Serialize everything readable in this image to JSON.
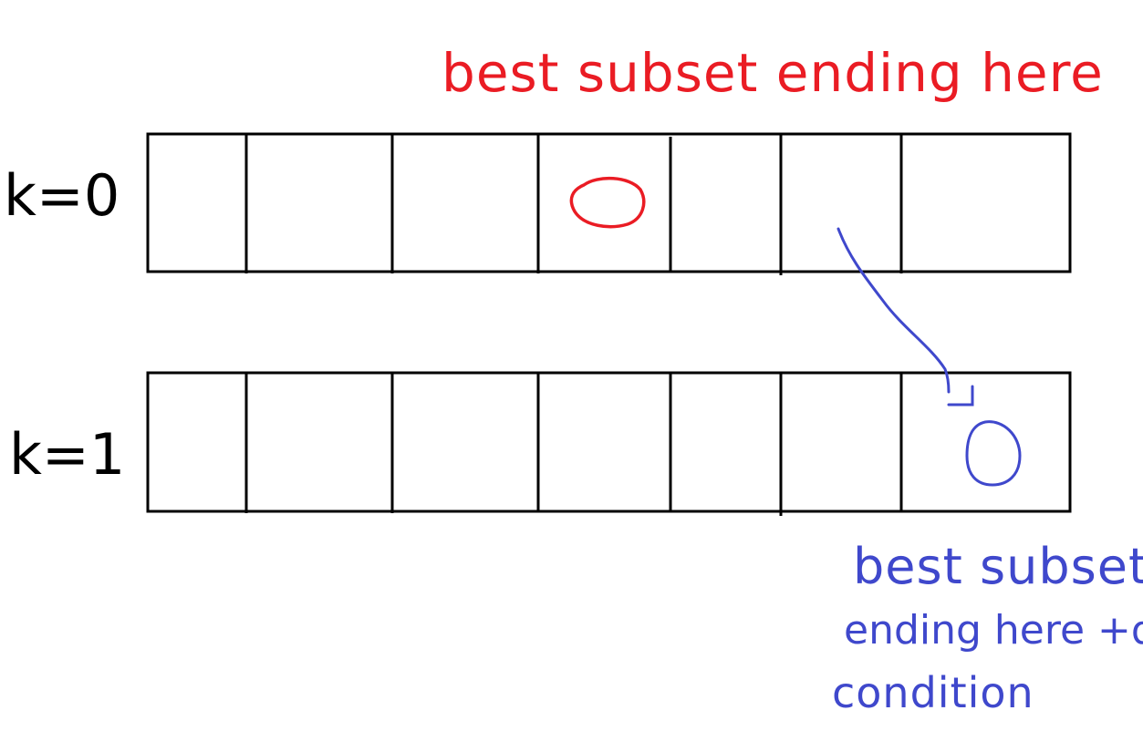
{
  "rows": [
    {
      "label": "k=0",
      "cells": 7
    },
    {
      "label": "k=1",
      "cells": 7
    }
  ],
  "annotations": {
    "top": "best subset ending here",
    "bottom_line1": "best subset",
    "bottom_line2": "ending here +dp",
    "bottom_line3": "condition"
  },
  "colors": {
    "grid": "#000000",
    "red": "#ea1c24",
    "blue": "#3f48cc",
    "background": "#ffffff"
  }
}
